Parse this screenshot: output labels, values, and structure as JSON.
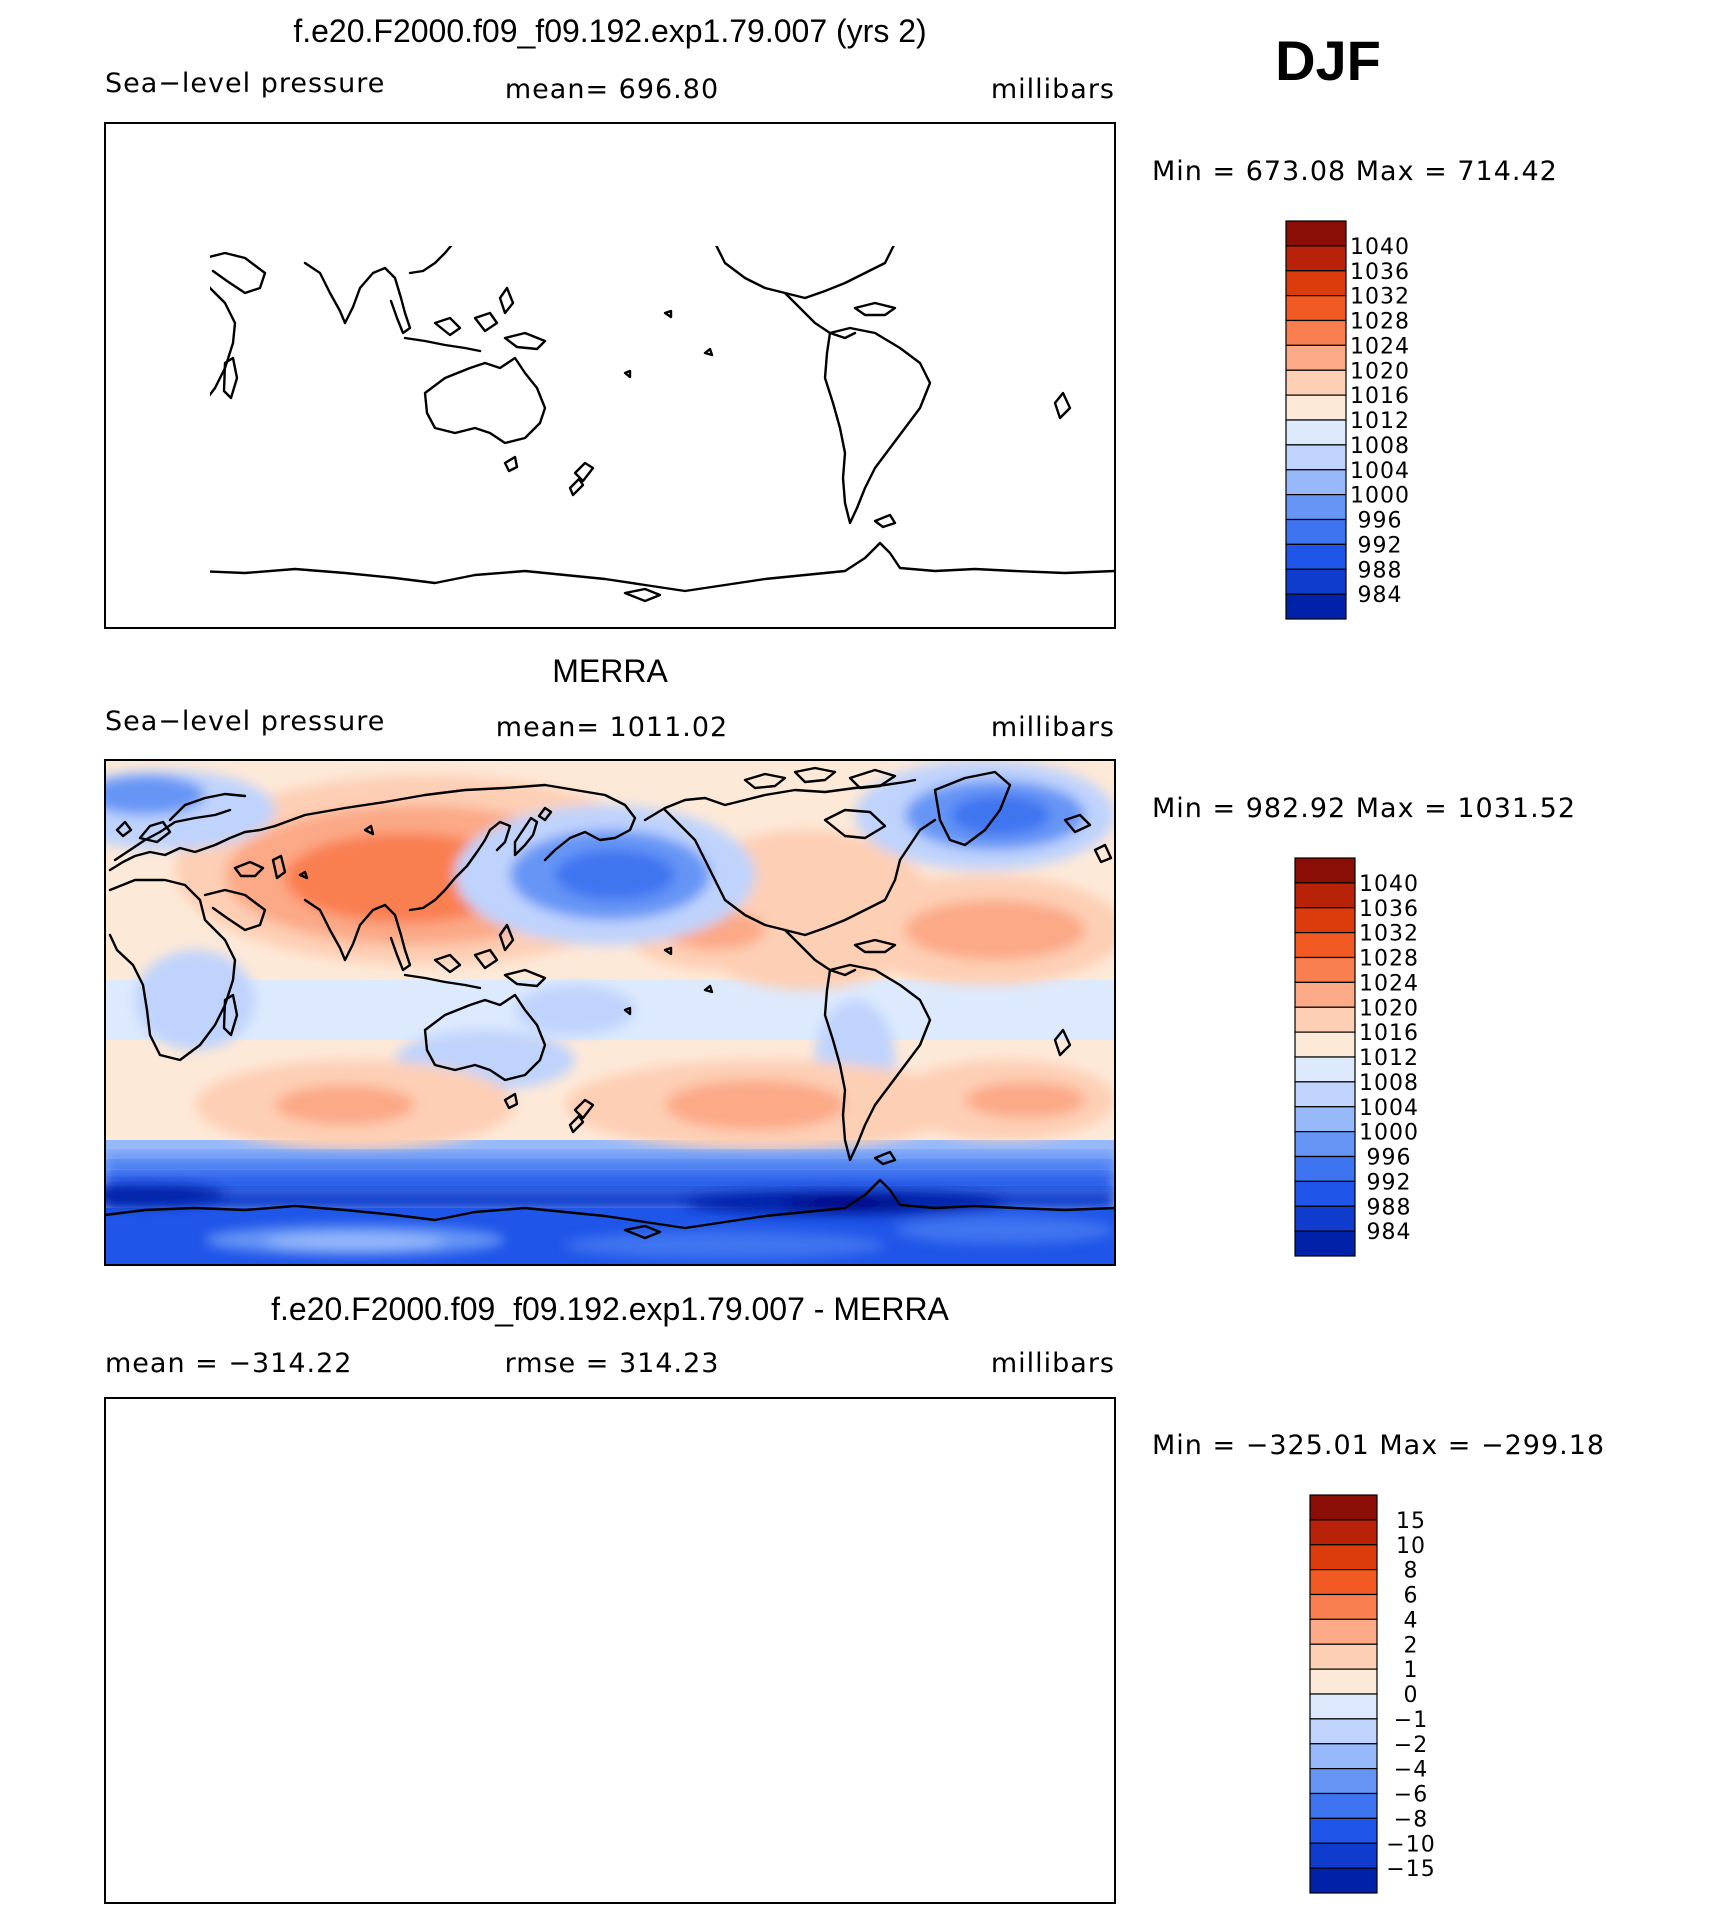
{
  "season": "DJF",
  "colors": {
    "slp": [
      "#00007e",
      "#0022a8",
      "#0f3ccc",
      "#1f55e8",
      "#3f74f0",
      "#6695f5",
      "#97b9fa",
      "#bfd3fc",
      "#ddeafd",
      "#fde9d8",
      "#fdcfb5",
      "#fba987",
      "#f97f51",
      "#f25a24",
      "#dc3b0b",
      "#b82208",
      "#8a0e06"
    ],
    "diff": [
      "#00007e",
      "#0022a8",
      "#0f3ccc",
      "#1f55e8",
      "#3f74f0",
      "#6695f5",
      "#97b9fa",
      "#bfd3fc",
      "#ddeafd",
      "#fde9d8",
      "#fdcfb5",
      "#fba987",
      "#f97f51",
      "#f25a24",
      "#dc3b0b",
      "#b82208",
      "#8a0e06"
    ]
  },
  "chart_data": [
    {
      "type": "heatmap",
      "title": "f.e20.F2000.f09_f09.192.exp1.79.007 (yrs 2)",
      "left_label": "Sea−level pressure",
      "center_label": "mean=  696.80",
      "units": "millibars",
      "minmax": "Min  =  673.08  Max  =  714.42",
      "levels": [
        "1040",
        "1036",
        "1032",
        "1028",
        "1024",
        "1020",
        "1016",
        "1012",
        "1008",
        "1004",
        "1000",
        "996",
        "992",
        "988",
        "984"
      ],
      "mean": 696.8,
      "min": 673.08,
      "max": 714.42,
      "filled": false
    },
    {
      "type": "heatmap",
      "title": "MERRA",
      "left_label": "Sea−level pressure",
      "center_label": "mean=  1011.02",
      "units": "millibars",
      "minmax": "Min  =  982.92  Max  =  1031.52",
      "levels": [
        "1040",
        "1036",
        "1032",
        "1028",
        "1024",
        "1020",
        "1016",
        "1012",
        "1008",
        "1004",
        "1000",
        "996",
        "992",
        "988",
        "984"
      ],
      "mean": 1011.02,
      "min": 982.92,
      "max": 1031.52,
      "filled": true
    },
    {
      "type": "heatmap",
      "title": "f.e20.F2000.f09_f09.192.exp1.79.007 - MERRA",
      "left_label": "mean  =  −314.22",
      "center_label": "rmse  =  314.23",
      "units": "millibars",
      "minmax": "Min  =  −325.01  Max  =  −299.18",
      "levels": [
        "15",
        "10",
        "8",
        "6",
        "4",
        "2",
        "1",
        "0",
        "−1",
        "−2",
        "−4",
        "−6",
        "−8",
        "−10",
        "−15"
      ],
      "mean": -314.22,
      "rmse": 314.23,
      "min": -325.01,
      "max": -299.18,
      "filled": false
    }
  ]
}
